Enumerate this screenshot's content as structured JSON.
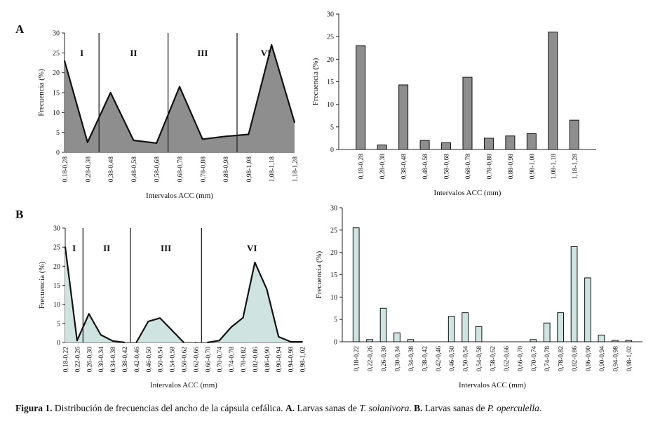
{
  "panels": [
    "A",
    "B"
  ],
  "caption": {
    "label": "Figura 1.",
    "text1": " Distribución de frecuencias del ancho de la cápsula cefálica. ",
    "a_label": "A.",
    "text2": " Larvas sanas de ",
    "species_a": "T. solanivora",
    "text3": ". ",
    "b_label": "B.",
    "text4": " Larvas sanas de ",
    "species_b": "P. operculella",
    "text5": "."
  },
  "chart_data": [
    {
      "id": "A-area",
      "type": "area",
      "fill": "#8e8e8e",
      "xlabel": "Intervalos ACC (mm)",
      "ylabel": "Frecuencia (%)",
      "ylim": [
        0,
        30
      ],
      "yticks": [
        0,
        5,
        10,
        15,
        20,
        25,
        30
      ],
      "categories": [
        "0,18-0,28",
        "0,28-0,38",
        "0,38-0,48",
        "0,48-0,58",
        "0,58-0,68",
        "0,68-0,78",
        "0,78-0,88",
        "0,88-0,98",
        "0,98-1,08",
        "1,08-1,18",
        "1,18-1,28"
      ],
      "values": [
        23,
        2.5,
        15,
        3,
        2.3,
        16.5,
        3.3,
        4,
        4.5,
        27,
        7.5
      ],
      "dividers_after": [
        1,
        4,
        7
      ],
      "stages": [
        "I",
        "II",
        "III",
        "VI"
      ]
    },
    {
      "id": "A-bar",
      "type": "bar",
      "fill": "#8e8e8e",
      "xlabel": "Intervalos ACC (mm)",
      "ylabel": "Frecuencia (%)",
      "ylim": [
        0,
        30
      ],
      "yticks": [
        0,
        5,
        10,
        15,
        20,
        25,
        30
      ],
      "categories": [
        "0,18-0,28",
        "0,28-0,38",
        "0,38-0,48",
        "0,48-0,58",
        "0,58-0,68",
        "0,68-0,78",
        "0,78-0,88",
        "0,88-0,98",
        "0,98-1,08",
        "1,08-1,18",
        "1,18-1,28"
      ],
      "values": [
        23,
        1,
        14.3,
        2,
        1.5,
        16,
        2.5,
        3,
        3.5,
        26,
        6.5
      ]
    },
    {
      "id": "B-area",
      "type": "area",
      "fill": "#cfe3e1",
      "xlabel": "Intervalos ACC (mm)",
      "ylabel": "Frecuencia (%)",
      "ylim": [
        0,
        30
      ],
      "yticks": [
        0,
        5,
        10,
        15,
        20,
        25,
        30
      ],
      "categories": [
        "0,18-0,22",
        "0,22-0,26",
        "0,26-0,30",
        "0,30-0,34",
        "0,34-0,38",
        "0,38-0,42",
        "0,42-0,46",
        "0,46-0,50",
        "0,50-0,54",
        "0,54-0,58",
        "0,58-0,62",
        "0,62-0,66",
        "0,66-0,70",
        "0,70-0,74",
        "0,74-0,78",
        "0,78-0,82",
        "0,82-0,86",
        "0,86-0,90",
        "0,90-0,94",
        "0,94-0,98",
        "0,98-1,02"
      ],
      "values": [
        25,
        0.5,
        7.5,
        2,
        0.4,
        0,
        0,
        5.5,
        6.4,
        3.2,
        0,
        0,
        0,
        0.5,
        4,
        6.5,
        21,
        14,
        1.5,
        0.2,
        0.2
      ],
      "segments": [
        [
          0,
          5
        ],
        [
          6,
          10
        ],
        [
          12,
          20
        ]
      ],
      "dividers_after": [
        1,
        5,
        11
      ],
      "stages": [
        "I",
        "II",
        "III",
        "VI"
      ]
    },
    {
      "id": "B-bar",
      "type": "bar",
      "fill": "#cfe3e1",
      "xlabel": "Intervalos ACC (mm)",
      "ylabel": "Frecuencia (%)",
      "ylim": [
        0,
        30
      ],
      "yticks": [
        0,
        5,
        10,
        15,
        20,
        25,
        30
      ],
      "categories": [
        "0,18-0,22",
        "0,22-0,26",
        "0,26-0,30",
        "0,30-0,34",
        "0,34-0,38",
        "0,38-0,42",
        "0,42-0,46",
        "0,46-0,50",
        "0,50-0,54",
        "0,54-0,58",
        "0,58-0,62",
        "0,62-0,66",
        "0,66-0,70",
        "0,70-0,74",
        "0,74-0,78",
        "0,78-0,82",
        "0,82-0,86",
        "0,86-0,90",
        "0,90-0,94",
        "0,94-0,98",
        "0,98-1,02"
      ],
      "values": [
        25.5,
        0.5,
        7.5,
        2,
        0.5,
        0,
        0,
        5.7,
        6.5,
        3.4,
        0,
        0,
        0,
        0.5,
        4.2,
        6.5,
        21.3,
        14.3,
        1.5,
        0.3,
        0.3
      ]
    }
  ]
}
